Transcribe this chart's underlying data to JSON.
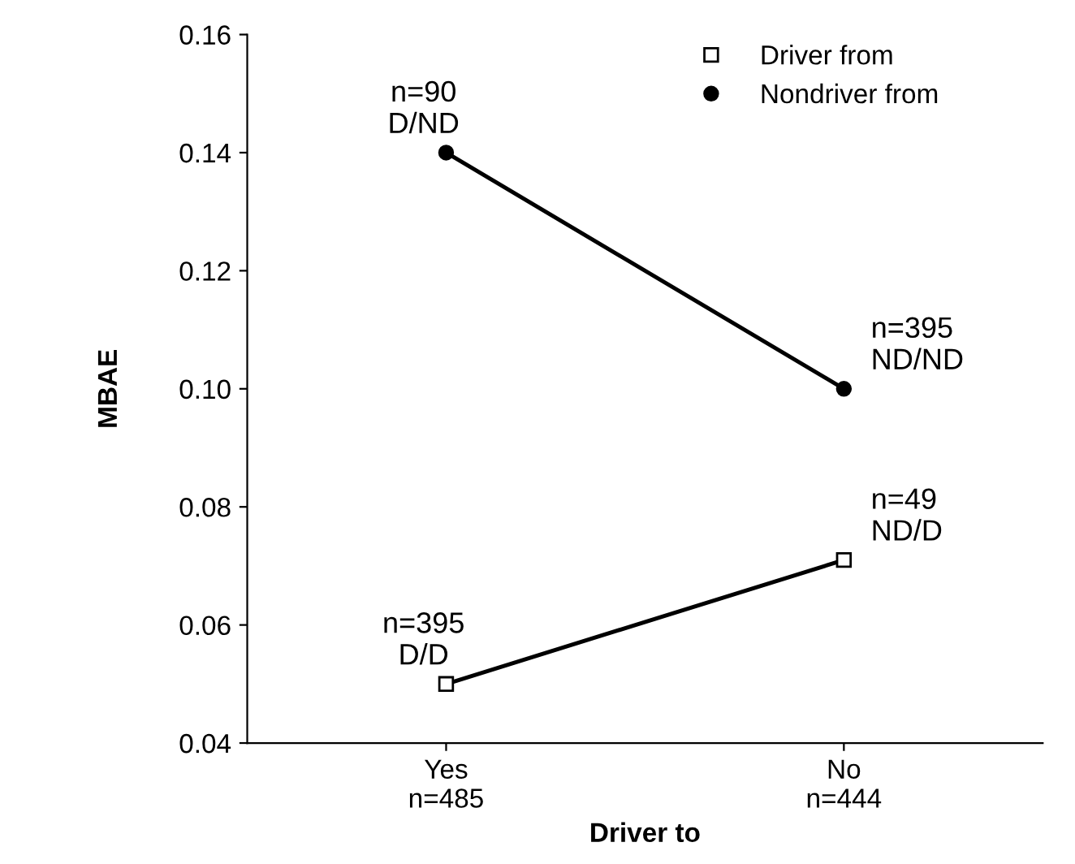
{
  "chart_data": {
    "type": "line",
    "xlabel": "Driver to",
    "ylabel": "MBAE",
    "categories": [
      "Yes\nn=485",
      "No\nn=444"
    ],
    "series": [
      {
        "name": "Driver from",
        "color": "#000000",
        "marker": "square",
        "values": [
          0.05,
          0.071
        ]
      },
      {
        "name": "Nondriver from",
        "color": "#000000",
        "marker": "circle",
        "values": [
          0.14,
          0.1
        ]
      }
    ],
    "ylim": [
      0.04,
      0.16
    ],
    "yticks": [
      0.04,
      0.06,
      0.08,
      {
        "value": 0.1,
        "label": "0.10"
      },
      0.12,
      0.14,
      0.16
    ],
    "annotations": [
      {
        "text": "n=90\nD/ND",
        "x": "Yes\nn=485",
        "y": 0.14
      },
      {
        "text": "n=395\nND/ND",
        "x": "No\nn=444",
        "y": 0.1
      },
      {
        "text": "n=49\nND/D",
        "x": "No\nn=444",
        "y": 0.071
      },
      {
        "text": "n=395\nD/D",
        "x": "Yes\nn=485",
        "y": 0.05
      }
    ],
    "legend": "top right",
    "grid": false,
    "line_style": "solid"
  }
}
